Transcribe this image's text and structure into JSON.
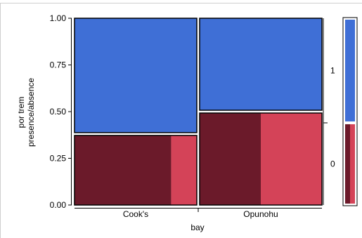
{
  "chart_data": {
    "type": "mosaic",
    "xlabel": "bay",
    "ylabel_lines": [
      "por trem",
      "presence/absence"
    ],
    "categories": [
      "Cook's",
      "Opunohu"
    ],
    "category_widths": [
      0.5,
      0.5
    ],
    "y_ticks": [
      "0.00",
      "0.25",
      "0.50",
      "0.75",
      "1.00"
    ],
    "ylim": [
      0,
      1
    ],
    "response_levels": [
      "0",
      "1"
    ],
    "response_labels_right": [
      "1",
      "0"
    ],
    "proportions": {
      "Cook's": {
        "0": 0.38,
        "1": 0.62
      },
      "Opunohu": {
        "0": 0.5,
        "1": 0.5
      }
    },
    "sub_split_within_0": {
      "Cook's": [
        0.79,
        0.21
      ],
      "Opunohu": [
        0.5,
        0.5
      ]
    },
    "legend_strip": {
      "0": 0.44,
      "1": 0.56
    },
    "colors": {
      "level_1": "#3f6fd6",
      "level_0_dark": "#6b1a2a",
      "level_0_light": "#d44358",
      "border": "#000000",
      "frame": "#cfcfcf"
    }
  }
}
